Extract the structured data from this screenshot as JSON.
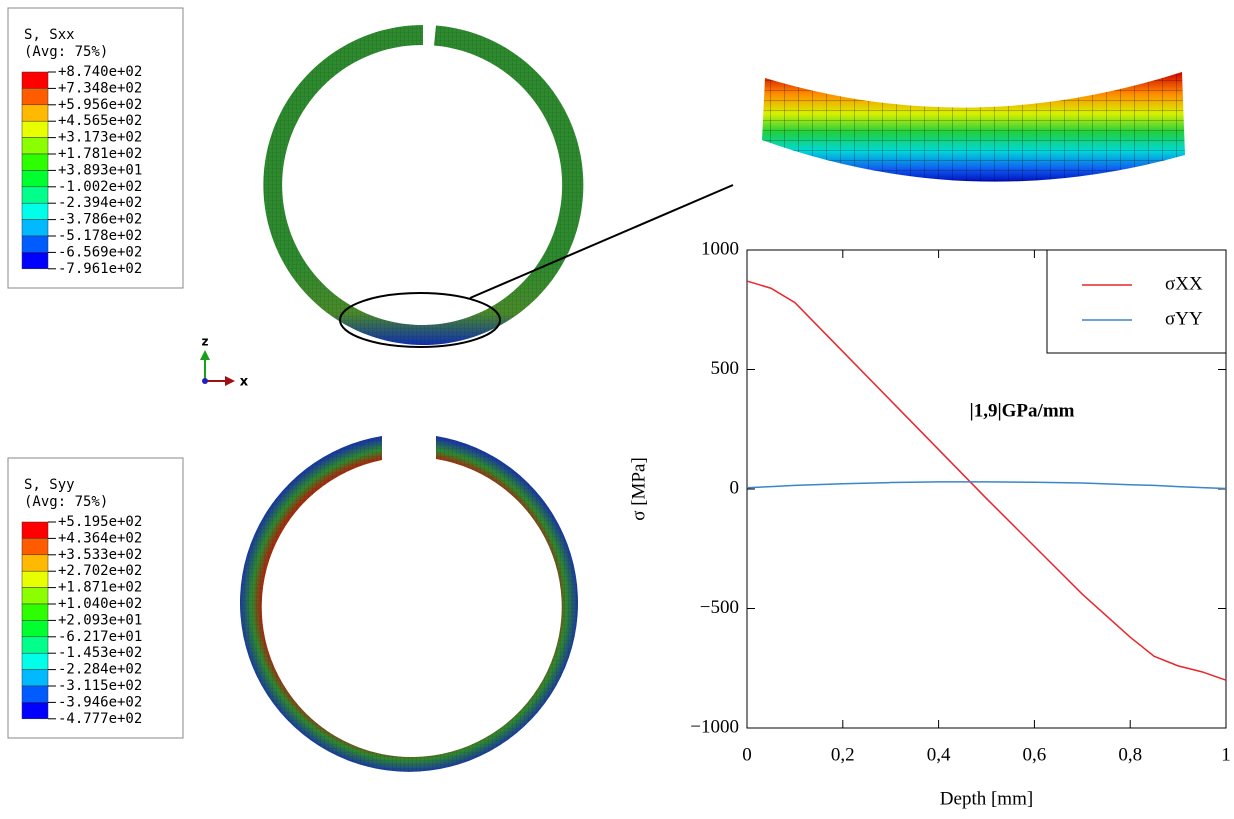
{
  "contour_legends": [
    {
      "title": "S, Sxx",
      "average": "(Avg: 75%)",
      "labels": [
        "+8.740e+02",
        "+7.348e+02",
        "+5.956e+02",
        "+4.565e+02",
        "+3.173e+02",
        "+1.781e+02",
        "+3.893e+01",
        "-1.002e+02",
        "-2.394e+02",
        "-3.786e+02",
        "-5.178e+02",
        "-6.569e+02",
        "-7.961e+02"
      ]
    },
    {
      "title": "S, Syy",
      "average": "(Avg: 75%)",
      "labels": [
        "+5.195e+02",
        "+4.364e+02",
        "+3.533e+02",
        "+2.702e+02",
        "+1.871e+02",
        "+1.040e+02",
        "+2.093e+01",
        "-6.217e+01",
        "-1.453e+02",
        "-2.284e+02",
        "-3.115e+02",
        "-3.946e+02",
        "-4.777e+02"
      ]
    }
  ],
  "triad": {
    "z": "z",
    "x": "x"
  },
  "chart_data": {
    "type": "line",
    "x_label": "Depth [mm]",
    "y_label": "σ [MPa]",
    "annotation": "|1,9|GPa/mm",
    "x": [
      0,
      0.05,
      0.1,
      0.2,
      0.3,
      0.4,
      0.5,
      0.6,
      0.7,
      0.8,
      0.85,
      0.9,
      0.95,
      1
    ],
    "series": [
      {
        "name": "σXX",
        "color": "#e8262b",
        "values": [
          870,
          840,
          780,
          575,
          370,
          165,
          -40,
          -240,
          -440,
          -620,
          -700,
          -740,
          -765,
          -800
        ]
      },
      {
        "name": "σYY",
        "color": "#3a86c8",
        "values": [
          5,
          10,
          15,
          22,
          27,
          30,
          30,
          28,
          25,
          18,
          15,
          10,
          6,
          2
        ]
      }
    ],
    "xlim": [
      0,
      1
    ],
    "ylim": [
      -1000,
      1000
    ],
    "xticks": [
      0,
      {
        "value": 0.2,
        "label": "0,2"
      },
      {
        "value": 0.4,
        "label": "0,4"
      },
      {
        "value": 0.6,
        "label": "0,6"
      },
      {
        "value": 0.8,
        "label": "0,8"
      },
      1
    ],
    "yticks": [
      {
        "value": -1000,
        "label": "−1000"
      },
      {
        "value": -500,
        "label": "−500"
      },
      0,
      500,
      1000
    ],
    "legend": "upper right",
    "grid": false
  }
}
